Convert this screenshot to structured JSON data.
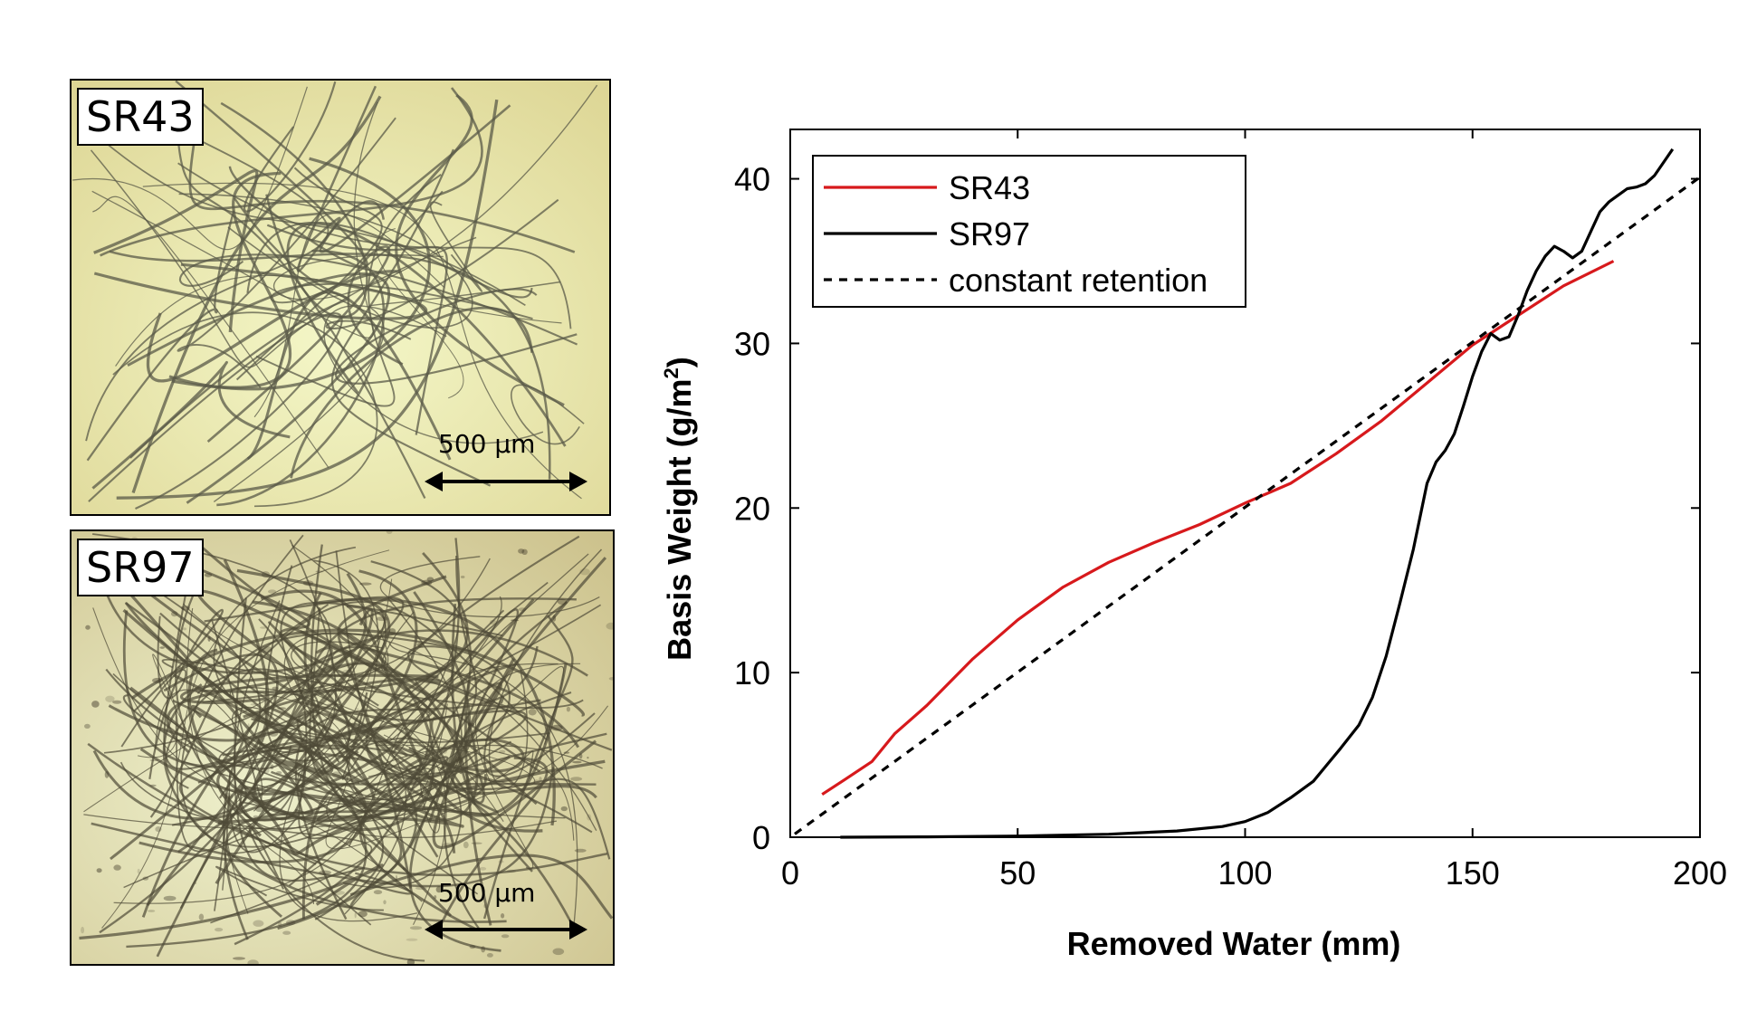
{
  "panels": [
    {
      "label": "SR43",
      "scale_label": "500 µm",
      "texture": "sparse"
    },
    {
      "label": "SR97",
      "scale_label": "500 µm",
      "texture": "dense"
    }
  ],
  "chart_data": {
    "type": "line",
    "xlabel": "Removed Water (mm)",
    "ylabel_main": "Basis Weight (g/m",
    "ylabel_sup": "2",
    "ylabel_end": ")",
    "xlim": [
      0,
      200
    ],
    "ylim": [
      0,
      43
    ],
    "xticks": [
      0,
      50,
      100,
      150,
      200
    ],
    "yticks": [
      0,
      10,
      20,
      30,
      40
    ],
    "grid": false,
    "legend_position": "top-left",
    "series": [
      {
        "name": "SR43",
        "color": "#d7191c",
        "dash": "none",
        "x": [
          7,
          12,
          18,
          23,
          30,
          40,
          50,
          60,
          70,
          80,
          90,
          100,
          110,
          120,
          130,
          140,
          150,
          160,
          170,
          181
        ],
        "y": [
          2.6,
          3.5,
          4.6,
          6.3,
          8.0,
          10.8,
          13.2,
          15.2,
          16.7,
          17.9,
          19.0,
          20.3,
          21.5,
          23.3,
          25.3,
          27.6,
          29.9,
          31.7,
          33.5,
          35.0
        ]
      },
      {
        "name": "SR97",
        "color": "#000000",
        "dash": "none",
        "x": [
          11,
          30,
          50,
          70,
          85,
          95,
          100,
          105,
          110,
          115,
          118,
          121,
          125,
          128,
          131,
          134,
          137,
          140,
          142,
          144,
          146,
          148,
          150,
          152,
          154,
          156,
          158,
          160,
          162,
          164,
          166,
          168,
          170,
          172,
          174,
          176,
          178,
          180,
          182,
          184,
          186,
          188,
          190,
          192,
          194
        ],
        "y": [
          0,
          0.02,
          0.07,
          0.18,
          0.38,
          0.65,
          0.95,
          1.5,
          2.4,
          3.4,
          4.4,
          5.4,
          6.8,
          8.5,
          11,
          14.2,
          17.5,
          21.5,
          22.8,
          23.5,
          24.5,
          26.2,
          28.0,
          29.5,
          30.6,
          30.2,
          30.4,
          31.7,
          33.2,
          34.4,
          35.3,
          35.9,
          35.6,
          35.2,
          35.6,
          36.8,
          38.0,
          38.6,
          39.0,
          39.4,
          39.5,
          39.7,
          40.2,
          41.0,
          41.8
        ]
      },
      {
        "name": "constant retention",
        "color": "#000000",
        "dash": "9,8",
        "x": [
          1,
          200
        ],
        "y": [
          0.2,
          40.1
        ]
      }
    ]
  }
}
